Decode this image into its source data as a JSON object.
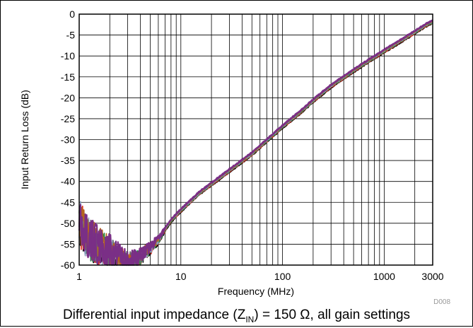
{
  "chart_data": {
    "type": "line",
    "xlabel": "Frequency (MHz)",
    "ylabel": "Input Return Loss (dB)",
    "xscale": "log",
    "xlim": [
      1,
      3000
    ],
    "ylim": [
      -60,
      0
    ],
    "grid": true,
    "xticks": [
      1,
      10,
      100,
      1000,
      3000
    ],
    "xtick_labels": [
      "1",
      "10",
      "100",
      "1000",
      "3000"
    ],
    "yticks": [
      0,
      -5,
      -10,
      -15,
      -20,
      -25,
      -30,
      -35,
      -40,
      -45,
      -50,
      -55,
      -60
    ],
    "ytick_labels": [
      "0",
      "-5",
      "-10",
      "-15",
      "-20",
      "-25",
      "-30",
      "-35",
      "-40",
      "-45",
      "-50",
      "-55",
      "-60"
    ],
    "figure_id": "D008",
    "series": [
      {
        "color": "#7a2f86",
        "x": [
          1,
          1.2,
          1.5,
          2,
          2.5,
          3,
          3.5,
          4,
          4.5,
          5,
          6,
          7,
          8,
          10,
          15,
          20,
          30,
          50,
          70,
          100,
          150,
          200,
          300,
          500,
          700,
          1000,
          1500,
          2000,
          2500,
          3000
        ],
        "y": [
          -50,
          -53,
          -55.5,
          -57,
          -58.5,
          -59.5,
          -59,
          -58,
          -57,
          -56,
          -54,
          -51.5,
          -49.5,
          -47,
          -43,
          -40.7,
          -37.5,
          -33.5,
          -30.3,
          -27,
          -23.5,
          -20.8,
          -17.3,
          -13.6,
          -11.3,
          -8.9,
          -6.3,
          -4.4,
          -2.9,
          -1.9
        ]
      }
    ],
    "extra_series_colors": [
      "#000000",
      "#e32219",
      "#2f8a45",
      "#8aa0c0",
      "#6e6e6e",
      "#b5651d"
    ]
  },
  "caption": {
    "prefix": "Differential input impedance (Z",
    "sub": "IN",
    "suffix": ") = 150 Ω, all gain settings"
  }
}
